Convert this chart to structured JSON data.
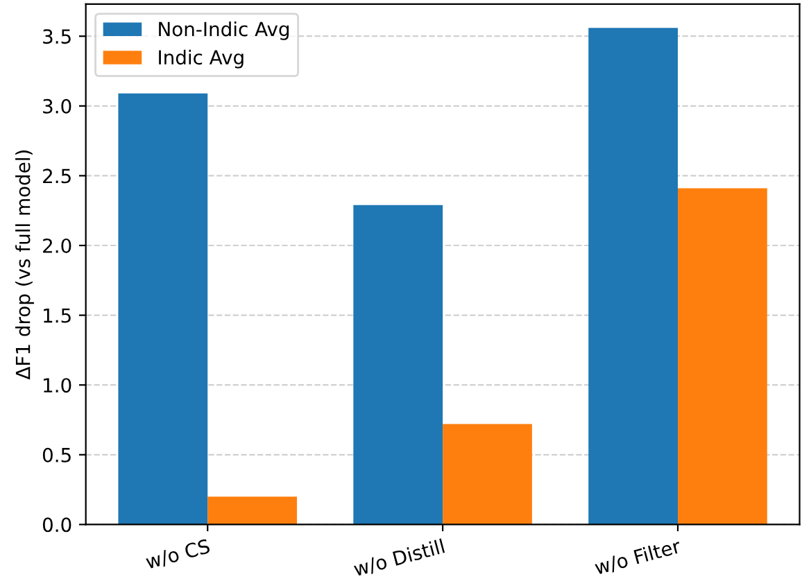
{
  "chart_data": {
    "type": "bar",
    "ylabel": "ΔF1 drop (vs full model)",
    "categories": [
      "w/o CS",
      "w/o Distill",
      "w/o Filter"
    ],
    "series": [
      {
        "name": "Non-Indic Avg",
        "color": "#1f77b4",
        "values": [
          3.09,
          2.29,
          3.56
        ]
      },
      {
        "name": "Indic Avg",
        "color": "#ff7f0e",
        "values": [
          0.2,
          0.72,
          2.41
        ]
      }
    ],
    "ylim": [
      0,
      3.73
    ],
    "yticks": [
      {
        "value": 0,
        "label": "0.0"
      },
      0.5,
      {
        "value": 1,
        "label": "1.0"
      },
      1.5,
      {
        "value": 2,
        "label": "2.0"
      },
      2.5,
      {
        "value": 3,
        "label": "3.0"
      },
      3.5
    ],
    "grid": "y",
    "legend": "top left"
  }
}
